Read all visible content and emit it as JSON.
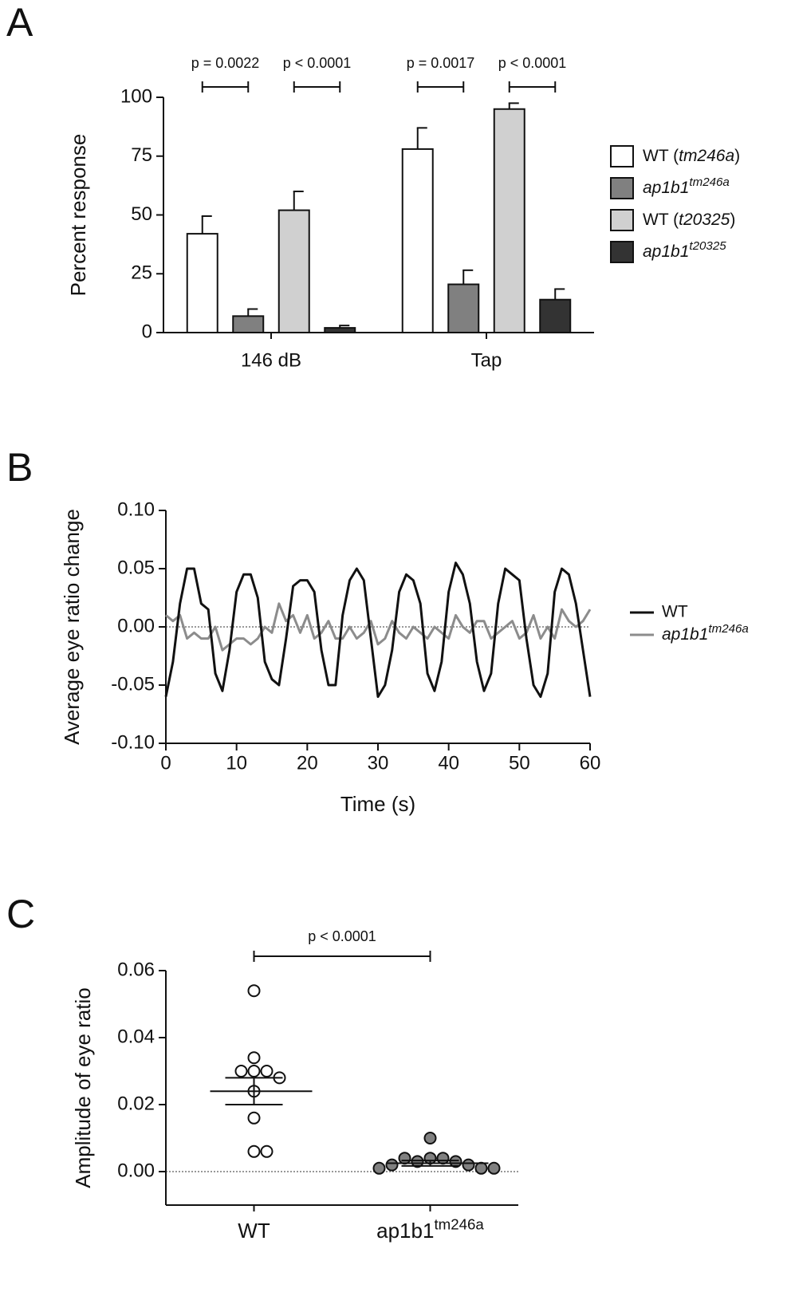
{
  "chart_data": [
    {
      "type": "bar",
      "panel": "A",
      "ylabel": "Percent response",
      "categories": [
        "146 dB",
        "Tap"
      ],
      "series": [
        {
          "name": "WT (tm246a)",
          "color": "#ffffff",
          "values": [
            42,
            78
          ],
          "errors": [
            7.5,
            9
          ]
        },
        {
          "name": "ap1b1tm246a",
          "color": "#808080",
          "values": [
            7,
            20.5
          ],
          "errors": [
            3,
            6
          ]
        },
        {
          "name": "WT (t20325)",
          "color": "#d0d0d0",
          "values": [
            52,
            95
          ],
          "errors": [
            8,
            2.5
          ]
        },
        {
          "name": "ap1b1t20325",
          "color": "#333333",
          "values": [
            2,
            14
          ],
          "errors": [
            1,
            4.5
          ]
        }
      ],
      "annotations": [
        "p = 0.0022",
        "p < 0.0001",
        "p = 0.0017",
        "p < 0.0001"
      ],
      "ylim": [
        0,
        100
      ],
      "yticks": [
        0,
        25,
        50,
        75,
        100
      ],
      "legend": "right"
    },
    {
      "type": "line",
      "panel": "B",
      "ylabel": "Average eye ratio change",
      "xlabel": "Time (s)",
      "x": [
        0,
        1,
        2,
        3,
        4,
        5,
        6,
        7,
        8,
        9,
        10,
        11,
        12,
        13,
        14,
        15,
        16,
        17,
        18,
        19,
        20,
        21,
        22,
        23,
        24,
        25,
        26,
        27,
        28,
        29,
        30,
        31,
        32,
        33,
        34,
        35,
        36,
        37,
        38,
        39,
        40,
        41,
        42,
        43,
        44,
        45,
        46,
        47,
        48,
        49,
        50,
        51,
        52,
        53,
        54,
        55,
        56,
        57,
        58,
        59,
        60
      ],
      "series": [
        {
          "name": "WT",
          "color": "#111111",
          "values": [
            -0.06,
            -0.03,
            0.02,
            0.05,
            0.05,
            0.02,
            0.015,
            -0.04,
            -0.055,
            -0.02,
            0.03,
            0.045,
            0.045,
            0.025,
            -0.03,
            -0.045,
            -0.05,
            -0.01,
            0.035,
            0.04,
            0.04,
            0.03,
            -0.02,
            -0.05,
            -0.05,
            0.01,
            0.04,
            0.05,
            0.04,
            -0.01,
            -0.06,
            -0.05,
            -0.02,
            0.03,
            0.045,
            0.04,
            0.02,
            -0.04,
            -0.055,
            -0.03,
            0.03,
            0.055,
            0.045,
            0.02,
            -0.03,
            -0.055,
            -0.04,
            0.02,
            0.05,
            0.045,
            0.04,
            -0.01,
            -0.05,
            -0.06,
            -0.04,
            0.03,
            0.05,
            0.045,
            0.02,
            -0.02,
            -0.06
          ]
        },
        {
          "name": "ap1b1tm246a",
          "color": "#8c8c8c",
          "values": [
            0.01,
            0.005,
            0.01,
            -0.01,
            -0.005,
            -0.01,
            -0.01,
            0,
            -0.02,
            -0.015,
            -0.01,
            -0.01,
            -0.015,
            -0.01,
            0,
            -0.005,
            0.02,
            0.005,
            0.01,
            -0.005,
            0.01,
            -0.01,
            -0.005,
            0.005,
            -0.01,
            -0.01,
            0,
            -0.01,
            -0.005,
            0.005,
            -0.015,
            -0.01,
            0.005,
            -0.005,
            -0.01,
            0,
            -0.005,
            -0.01,
            0,
            -0.005,
            -0.01,
            0.01,
            0,
            -0.005,
            0.005,
            0.005,
            -0.01,
            -0.005,
            0,
            0.005,
            -0.01,
            -0.005,
            0.01,
            -0.01,
            0,
            -0.01,
            0.015,
            0.005,
            0,
            0.005,
            0.015
          ]
        }
      ],
      "xlim": [
        0,
        60
      ],
      "xticks": [
        0,
        10,
        20,
        30,
        40,
        50,
        60
      ],
      "ylim": [
        -0.1,
        0.1
      ],
      "yticks": [
        {
          "value": -0.1,
          "label": "-0.10"
        },
        {
          "value": -0.05,
          "label": "-0.05"
        },
        {
          "value": 0,
          "label": "0.00"
        },
        {
          "value": 0.05,
          "label": "0.05"
        },
        {
          "value": 0.1,
          "label": "0.10"
        }
      ],
      "reference_line": 0,
      "legend": "right"
    },
    {
      "type": "strip",
      "panel": "C",
      "ylabel": "Amplitude of eye ratio",
      "categories": [
        "WT",
        "ap1b1tm246a"
      ],
      "groups": [
        {
          "color": "#ffffff",
          "values": [
            0.054,
            0.034,
            0.03,
            0.03,
            0.03,
            0.028,
            0.024,
            0.016,
            0.006,
            0.006
          ],
          "mean": 0.024,
          "error": 0.004
        },
        {
          "color": "#808080",
          "values": [
            0.01,
            0.004,
            0.004,
            0.003,
            0.003,
            0.004,
            0.002,
            0.002,
            0.001,
            0.001,
            0.001
          ],
          "mean": 0.0025,
          "error": 0.0008
        }
      ],
      "annotations": [
        "p < 0.0001"
      ],
      "ylim": [
        -0.01,
        0.06
      ],
      "yticks": [
        {
          "value": 0,
          "label": "0.00"
        },
        {
          "value": 0.02,
          "label": "0.02"
        },
        {
          "value": 0.04,
          "label": "0.04"
        },
        {
          "value": 0.06,
          "label": "0.06"
        }
      ],
      "reference_line": 0
    }
  ]
}
